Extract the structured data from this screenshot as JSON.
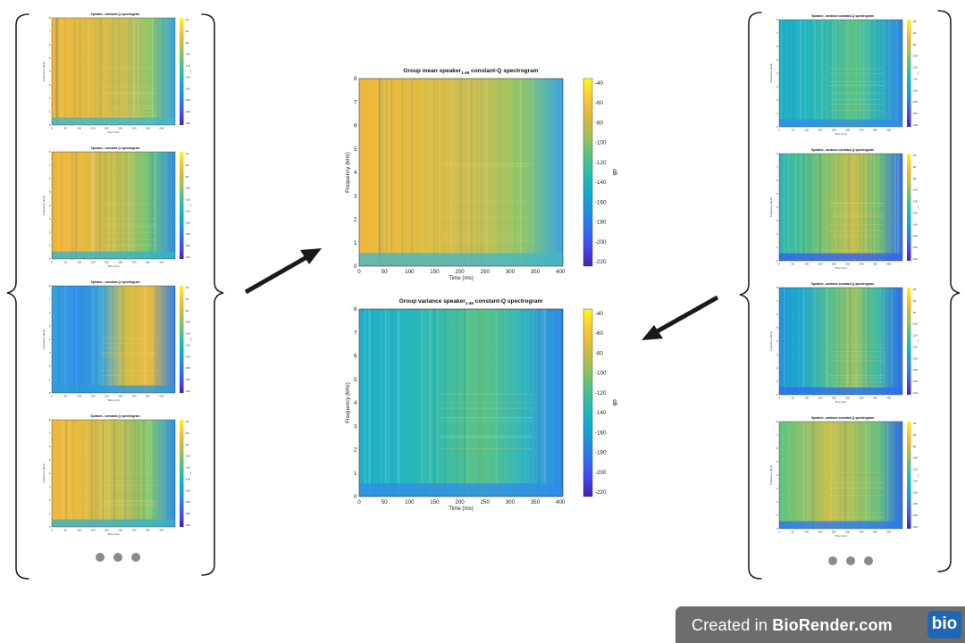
{
  "colorbar_gradient": [
    "#3e26a8",
    "#4745f3",
    "#2e6ff0",
    "#1e93dd",
    "#10aecb",
    "#2bbea6",
    "#5cc37b",
    "#a2c152",
    "#dcb83a",
    "#fcc937",
    "#f9fb15"
  ],
  "left_panels": [
    {
      "title": "Speaker₁ constant-Q spectrogram",
      "style": "mean1"
    },
    {
      "title": "Speaker₂ constant-Q spectrogram",
      "style": "mean2"
    },
    {
      "title": "Speaker₃ constant-Q spectrogram",
      "style": "mean3"
    },
    {
      "title": "Speaker₄ constant-Q spectrogram",
      "style": "mean4"
    }
  ],
  "right_panels": [
    {
      "title": "Speaker₁ variance constant-Q spectrogram",
      "style": "var1"
    },
    {
      "title": "Speaker₂ variance constant-Q spectrogram",
      "style": "var2"
    },
    {
      "title": "Speaker₃ variance constant-Q spectrogram",
      "style": "var3"
    },
    {
      "title": "Speaker₄ variance constant-Q spectrogram",
      "style": "var4"
    }
  ],
  "small_axes": {
    "xlabel": "Time (ms)",
    "ylabel": "Frequency (kHz)",
    "cbar_label": "dB",
    "xticks": [
      "0",
      "50",
      "100",
      "150",
      "200",
      "250",
      "300",
      "350",
      "400"
    ],
    "yticks": [
      "0",
      "1",
      "2",
      "3",
      "4",
      "5",
      "6",
      "7",
      "8"
    ],
    "cticks": [
      "-40",
      "-60",
      "-80",
      "-100",
      "-120",
      "-140",
      "-160",
      "-180",
      "-200",
      "-220"
    ]
  },
  "center_mean": {
    "title_prefix": "Group mean speaker",
    "title_sub": "1-46",
    "title_suffix": " constant-Q spectrogram",
    "xlabel": "Time (ms)",
    "ylabel": "Frequency (kHz)",
    "cbar_label": "dB",
    "xticks": [
      "0",
      "50",
      "100",
      "150",
      "200",
      "250",
      "300",
      "350",
      "400"
    ],
    "yticks": [
      "0",
      "1",
      "2",
      "3",
      "4",
      "5",
      "6",
      "7",
      "8"
    ],
    "cticks": [
      "-40",
      "-60",
      "-80",
      "-100",
      "-120",
      "-140",
      "-160",
      "-180",
      "-200",
      "-220"
    ]
  },
  "center_var": {
    "title_prefix": "Group variance speaker",
    "title_sub": "1-46",
    "title_suffix": " constant-Q spectrogram",
    "xlabel": "Time (ms)",
    "ylabel": "Frequency (kHz)",
    "cbar_label": "dB",
    "xticks": [
      "0",
      "50",
      "100",
      "150",
      "200",
      "250",
      "300",
      "350",
      "400"
    ],
    "yticks": [
      "0",
      "1",
      "2",
      "3",
      "4",
      "5",
      "6",
      "7",
      "8"
    ],
    "cticks": [
      "-40",
      "-60",
      "-80",
      "-100",
      "-120",
      "-140",
      "-160",
      "-180",
      "-200",
      "-220"
    ]
  },
  "watermark": {
    "prefix": "Created in ",
    "brand": "BioRender.com",
    "logo": "bio"
  }
}
